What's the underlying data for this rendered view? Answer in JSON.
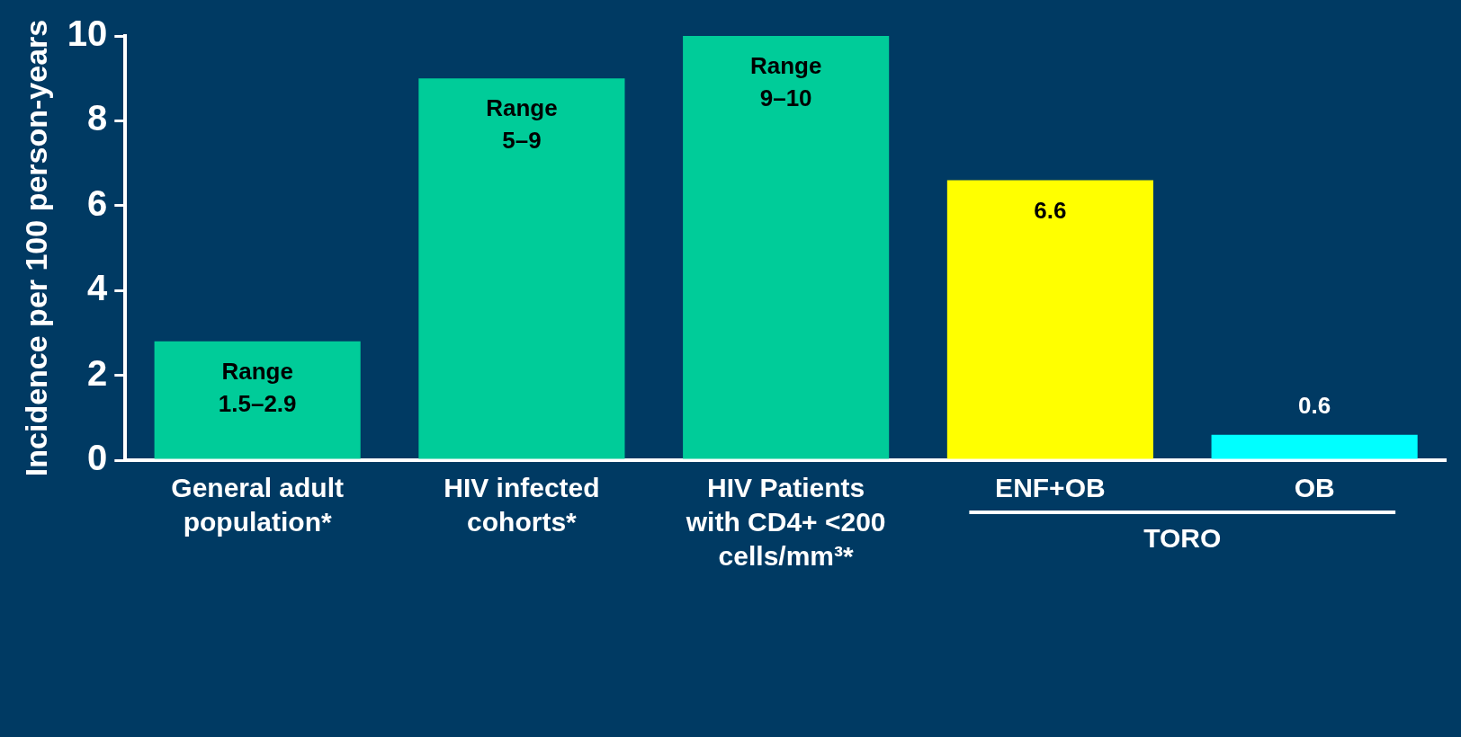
{
  "chart_data": {
    "type": "bar",
    "ylabel": "Incidence per 100 person-years",
    "categories": [
      "General adult population*",
      "HIV infected cohorts*",
      "HIV Patients with CD4+ <200 cells/mm³*",
      "ENF+OB",
      "OB"
    ],
    "values": [
      2.8,
      9,
      10,
      6.6,
      0.6
    ],
    "colors": [
      "#00cc99",
      "#00cc99",
      "#00cc99",
      "#ffff00",
      "#00ffff"
    ],
    "value_labels": [
      "Range 1.5–2.9",
      "Range 5–9",
      "Range 9–10",
      "6.6",
      "0.6"
    ],
    "ylim": [
      0,
      10
    ],
    "yticks": [
      0,
      2,
      4,
      6,
      8,
      10
    ],
    "grid": false,
    "legend": false,
    "annotations": [
      "TORO"
    ]
  }
}
